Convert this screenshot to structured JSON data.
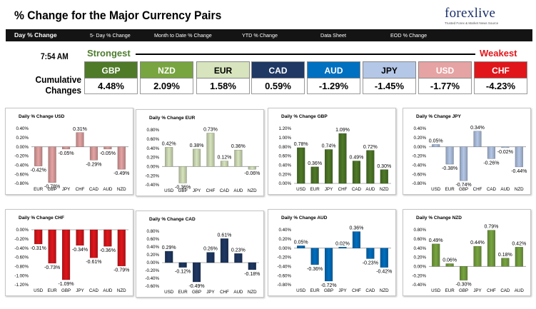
{
  "header": {
    "title": "% Change for the Major Currency Pairs"
  },
  "logo": {
    "text": "forexlive",
    "tagline": "Trusted Forex & Market News Source"
  },
  "nav": {
    "tabs": [
      "Day % Change",
      "5- Day % Change",
      "Month to Date % Change",
      "YTD % Change",
      "Data Sheet",
      "EOD % Change"
    ]
  },
  "summary": {
    "time": "7:54 AM",
    "strongest_label": "Strongest",
    "weakest_label": "Weakest",
    "cumulative_label_line1": "Cumulative",
    "cumulative_label_line2": "Changes",
    "currencies": [
      {
        "name": "GBP",
        "value": "4.48%",
        "bg": "#4f7a28",
        "fg": "#ffffff"
      },
      {
        "name": "NZD",
        "value": "2.09%",
        "bg": "#78a540",
        "fg": "#ffffff"
      },
      {
        "name": "EUR",
        "value": "1.58%",
        "bg": "#d7e4bd",
        "fg": "#000000"
      },
      {
        "name": "CAD",
        "value": "0.59%",
        "bg": "#1f3864",
        "fg": "#ffffff"
      },
      {
        "name": "AUD",
        "value": "-1.29%",
        "bg": "#0070c0",
        "fg": "#ffffff"
      },
      {
        "name": "JPY",
        "value": "-1.45%",
        "bg": "#b4c7e7",
        "fg": "#000000"
      },
      {
        "name": "USD",
        "value": "-1.77%",
        "bg": "#e6a3a3",
        "fg": "#ffffff"
      },
      {
        "name": "CHF",
        "value": "-4.23%",
        "bg": "#e0161b",
        "fg": "#ffffff"
      }
    ]
  },
  "chart_data": [
    {
      "type": "bar",
      "title": "Daily % Change USD",
      "categories": [
        "EUR",
        "GBP",
        "JPY",
        "CHF",
        "CAD",
        "AUD",
        "NZD"
      ],
      "values": [
        -0.42,
        -0.78,
        -0.05,
        0.31,
        -0.29,
        -0.05,
        -0.49
      ],
      "labels": [
        "-0.42%",
        "-0.78%",
        "-0.05%",
        "0.31%",
        "-0.29%",
        "-0.05%",
        "-0.49%"
      ],
      "ylim": [
        -0.8,
        0.4
      ],
      "yticks": [
        "0.40%",
        "0.20%",
        "0.00%",
        "-0.20%",
        "-0.40%",
        "-0.60%",
        "-0.80%"
      ],
      "color": "#e6a3a3"
    },
    {
      "type": "bar",
      "title": "Daily % Change EUR",
      "categories": [
        "USD",
        "GBP",
        "JPY",
        "CHF",
        "CAD",
        "AUD",
        "NZD"
      ],
      "values": [
        0.42,
        -0.36,
        0.38,
        0.73,
        0.12,
        0.36,
        -0.06
      ],
      "labels": [
        "0.42%",
        "-0.36%",
        "0.38%",
        "0.73%",
        "0.12%",
        "0.36%",
        "-0.06%"
      ],
      "ylim": [
        -0.4,
        0.8
      ],
      "yticks": [
        "0.80%",
        "0.60%",
        "0.40%",
        "0.20%",
        "0.00%",
        "-0.20%",
        "-0.40%"
      ],
      "color": "#d7e4bd"
    },
    {
      "type": "bar",
      "title": "Daily % Change GBP",
      "categories": [
        "USD",
        "EUR",
        "JPY",
        "CHF",
        "CAD",
        "AUD",
        "NZD"
      ],
      "values": [
        0.78,
        0.36,
        0.74,
        1.09,
        0.49,
        0.72,
        0.3
      ],
      "labels": [
        "0.78%",
        "0.36%",
        "0.74%",
        "1.09%",
        "0.49%",
        "0.72%",
        "0.30%"
      ],
      "ylim": [
        0,
        1.2
      ],
      "yticks": [
        "1.20%",
        "1.00%",
        "0.80%",
        "0.60%",
        "0.40%",
        "0.20%",
        "0.00%"
      ],
      "color": "#4f7a28"
    },
    {
      "type": "bar",
      "title": "Daily % Change JPY",
      "categories": [
        "USD",
        "EUR",
        "GBP",
        "CHF",
        "CAD",
        "AUD",
        "NZD"
      ],
      "values": [
        0.05,
        -0.38,
        -0.74,
        0.34,
        -0.26,
        -0.02,
        -0.44
      ],
      "labels": [
        "0.05%",
        "-0.38%",
        "-0.74%",
        "0.34%",
        "-0.26%",
        "-0.02%",
        "-0.44%"
      ],
      "ylim": [
        -0.8,
        0.4
      ],
      "yticks": [
        "0.40%",
        "0.20%",
        "0.00%",
        "-0.20%",
        "-0.40%",
        "-0.60%",
        "-0.80%"
      ],
      "color": "#b4c7e7"
    },
    {
      "type": "bar",
      "title": "Daily % Change CHF",
      "categories": [
        "USD",
        "EUR",
        "GBP",
        "JPY",
        "CAD",
        "AUD",
        "NZD"
      ],
      "values": [
        -0.31,
        -0.73,
        -1.09,
        -0.34,
        -0.61,
        -0.36,
        -0.79
      ],
      "labels": [
        "-0.31%",
        "-0.73%",
        "-1.09%",
        "-0.34%",
        "-0.61%",
        "-0.36%",
        "-0.79%"
      ],
      "ylim": [
        -1.2,
        0
      ],
      "yticks": [
        "0.00%",
        "-0.20%",
        "-0.40%",
        "-0.60%",
        "-0.80%",
        "-1.00%",
        "-1.20%"
      ],
      "color": "#e0161b"
    },
    {
      "type": "bar",
      "title": "Daily % Change CAD",
      "categories": [
        "USD",
        "EUR",
        "GBP",
        "JPY",
        "CHF",
        "AUD",
        "NZD"
      ],
      "values": [
        0.29,
        -0.12,
        -0.49,
        0.26,
        0.61,
        0.23,
        -0.18
      ],
      "labels": [
        "0.29%",
        "-0.12%",
        "-0.49%",
        "0.26%",
        "0.61%",
        "0.23%",
        "-0.18%"
      ],
      "ylim": [
        -0.6,
        0.8
      ],
      "yticks": [
        "0.80%",
        "0.60%",
        "0.40%",
        "0.20%",
        "0.00%",
        "-0.20%",
        "-0.40%",
        "-0.60%"
      ],
      "color": "#1f3864"
    },
    {
      "type": "bar",
      "title": "Daily % Change AUD",
      "categories": [
        "USD",
        "EUR",
        "GBP",
        "JPY",
        "CHF",
        "CAD",
        "NZD"
      ],
      "values": [
        0.05,
        -0.36,
        -0.72,
        0.02,
        0.36,
        -0.23,
        -0.42
      ],
      "labels": [
        "0.05%",
        "-0.36%",
        "-0.72%",
        "0.02%",
        "0.36%",
        "-0.23%",
        "-0.42%"
      ],
      "ylim": [
        -0.8,
        0.4
      ],
      "yticks": [
        "0.40%",
        "0.20%",
        "0.00%",
        "-0.20%",
        "-0.40%",
        "-0.60%",
        "-0.80%"
      ],
      "color": "#0070c0"
    },
    {
      "type": "bar",
      "title": "Daily % Change NZD",
      "categories": [
        "USD",
        "EUR",
        "GBP",
        "JPY",
        "CHF",
        "CAD",
        "AUD"
      ],
      "values": [
        0.49,
        0.06,
        -0.3,
        0.44,
        0.79,
        0.18,
        0.42
      ],
      "labels": [
        "0.49%",
        "0.06%",
        "-0.30%",
        "0.44%",
        "0.79%",
        "0.18%",
        "0.42%"
      ],
      "ylim": [
        -0.4,
        0.8
      ],
      "yticks": [
        "0.80%",
        "0.60%",
        "0.40%",
        "0.20%",
        "0.00%",
        "-0.20%",
        "-0.40%"
      ],
      "color": "#78a540"
    }
  ]
}
